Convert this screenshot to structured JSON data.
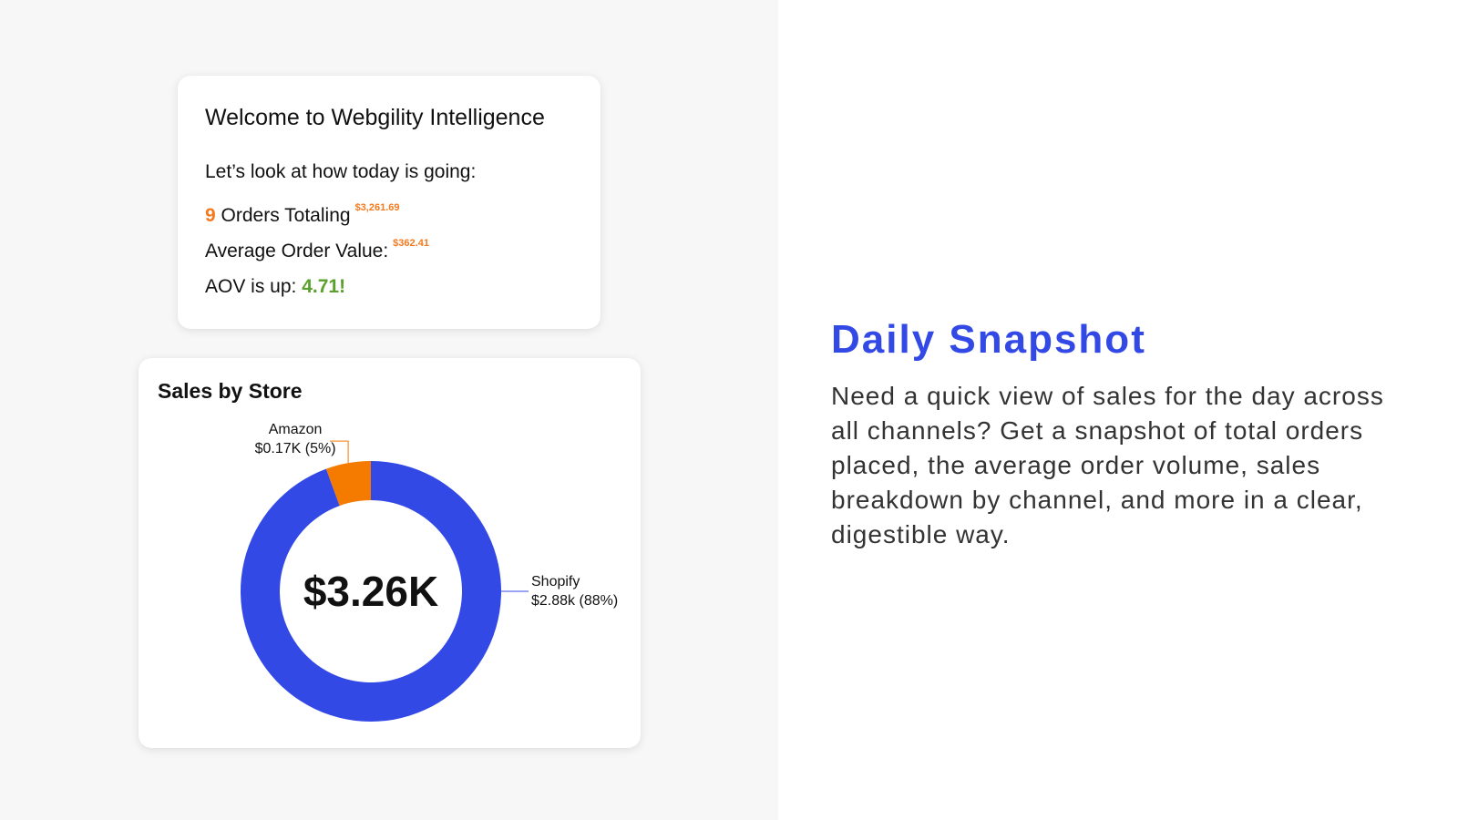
{
  "welcome": {
    "title": "Welcome to Webgility Intelligence",
    "intro": "Let’s look at how today is going:",
    "orders_count": "9",
    "orders_label": "Orders Totaling",
    "orders_total": "$3,261.69",
    "aov_label": "Average Order Value:",
    "aov_value": "$362.41",
    "aov_up_label": "AOV is up:",
    "aov_up_value": "4.71!"
  },
  "sales": {
    "title": "Sales by Store",
    "center_label": "$3.26K"
  },
  "chart_data": {
    "type": "pie",
    "title": "Sales by Store",
    "categories": [
      "Shopify",
      "Amazon"
    ],
    "values": [
      2.88,
      0.17
    ],
    "units": "K",
    "total_label": "$3.26K",
    "slices": [
      {
        "name": "Shopify",
        "value": 2.88,
        "label_name": "Shopify",
        "label_value": "$2.88k (88%)",
        "color": "#3349e6"
      },
      {
        "name": "Amazon",
        "value": 0.17,
        "label_name": "Amazon",
        "label_value": "$0.17K (5%)",
        "color": "#f47a00"
      }
    ]
  },
  "snapshot": {
    "title": "Daily Snapshot",
    "description": "Need a quick view of sales for the day across all channels? Get a snapshot of total orders placed, the average order volume, sales breakdown by channel, and more in a clear, digestible way."
  },
  "colors": {
    "accent_blue": "#3349e6",
    "accent_orange": "#f47a1f",
    "accent_green": "#5aa02c"
  }
}
